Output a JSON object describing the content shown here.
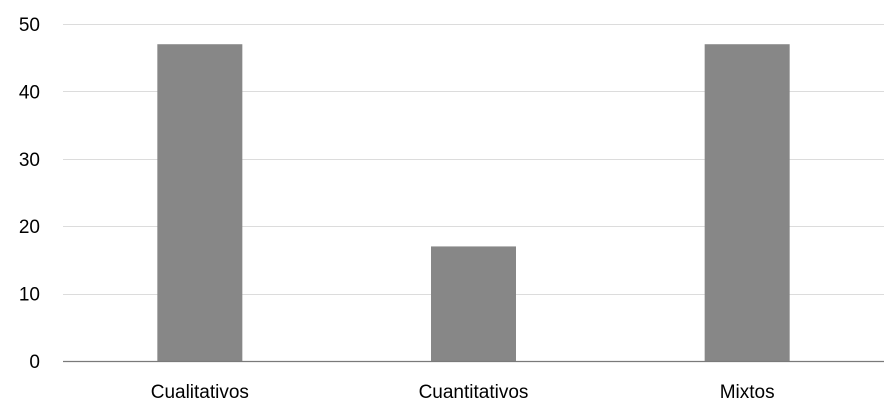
{
  "chart_data": {
    "type": "bar",
    "title": "",
    "xlabel": "",
    "ylabel": "",
    "categories": [
      "Cualitativos",
      "Cuantitativos",
      "Mixtos"
    ],
    "values": [
      47,
      17,
      47
    ],
    "ylim": [
      0,
      50
    ],
    "yticks": [
      0,
      10,
      20,
      30,
      40,
      50
    ],
    "grid": true,
    "legend": "none",
    "colors": {
      "bar": "#878787",
      "grid": "#dcdcdc",
      "axis": "#7a7a7a",
      "text": "#000000"
    }
  }
}
